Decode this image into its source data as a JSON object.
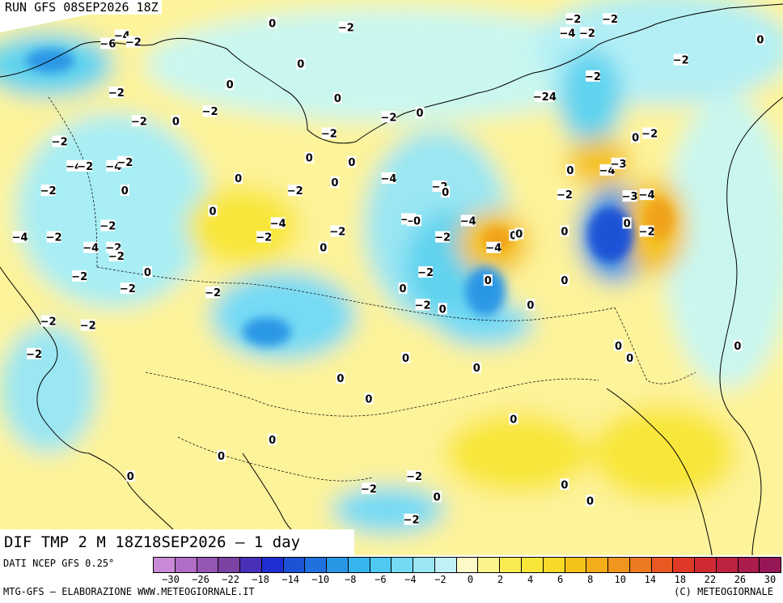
{
  "header": {
    "run_label": "RUN GFS 08SEP2026 18Z"
  },
  "title": {
    "text": "DIF TMP 2 M 18Z18SEP2026 — 1 day"
  },
  "footer": {
    "source": "DATI NCEP GFS 0.25°",
    "credit_left": "MTG-GFS — ELABORAZIONE WWW.METEOGIORNALE.IT",
    "credit_right": "(C) METEOGIORNALE"
  },
  "colors": {
    "neutral_light": "#c9f7f0",
    "cold_light": "#a8eef4",
    "cold_mid": "#5fd3ef",
    "cold_strong": "#2a97e6",
    "cold_deep": "#1b52d6",
    "warm_light": "#fdf6a0",
    "warm_mid": "#f9e63a",
    "warm_strong": "#f5c21a",
    "warm_orange": "#f0a21e"
  },
  "legend": {
    "swatches": [
      "#c88ad6",
      "#b06dc6",
      "#9557b4",
      "#7b42a3",
      "#4a2fb8",
      "#1d2fd2",
      "#1b52d6",
      "#2070e0",
      "#2a97e6",
      "#35b4ee",
      "#4fc8f2",
      "#74daf4",
      "#9ae6f3",
      "#c0f1f6",
      "#fdfac8",
      "#fdf38c",
      "#fbeb52",
      "#f9e63a",
      "#f7d928",
      "#f5c21a",
      "#f3ad18",
      "#f0951e",
      "#ec7a20",
      "#e85a22",
      "#de3826",
      "#cf2a33",
      "#bd2240",
      "#a91c4c",
      "#961756"
    ],
    "ticks": [
      "−30",
      "−26",
      "−22",
      "−18",
      "−14",
      "−10",
      "−8",
      "−6",
      "−4",
      "−2",
      "0",
      "2",
      "4",
      "6",
      "8",
      "10",
      "14",
      "18",
      "22",
      "26",
      "30"
    ]
  },
  "map_labels": [
    {
      "text": "−4",
      "lon": 35.5,
      "lat": 67.5
    },
    {
      "text": "−6",
      "lon": 33.0,
      "lat": 66.5
    },
    {
      "text": "−2",
      "lon": 37.5,
      "lat": 66.7
    },
    {
      "text": "0",
      "lon": 62.0,
      "lat": 69.0
    },
    {
      "text": "−2",
      "lon": 75.0,
      "lat": 68.5
    },
    {
      "text": "−2",
      "lon": 115.0,
      "lat": 69.5
    },
    {
      "text": "−4",
      "lon": 114.0,
      "lat": 67.8
    },
    {
      "text": "−2",
      "lon": 117.5,
      "lat": 67.8
    },
    {
      "text": "−2",
      "lon": 121.5,
      "lat": 69.5
    },
    {
      "text": "−2",
      "lon": 134.0,
      "lat": 64.5
    },
    {
      "text": "0",
      "lon": 67.0,
      "lat": 64.0
    },
    {
      "text": "0",
      "lon": 54.5,
      "lat": 61.5
    },
    {
      "text": "−2",
      "lon": 118.5,
      "lat": 62.5
    },
    {
      "text": "−24",
      "lon": 110.0,
      "lat": 60.0
    },
    {
      "text": "−2",
      "lon": 34.5,
      "lat": 60.5
    },
    {
      "text": "0",
      "lon": 73.5,
      "lat": 59.8
    },
    {
      "text": "−2",
      "lon": 38.5,
      "lat": 57.0
    },
    {
      "text": "0",
      "lon": 45.0,
      "lat": 57.0
    },
    {
      "text": "−2",
      "lon": 51.0,
      "lat": 58.2
    },
    {
      "text": "−2",
      "lon": 82.5,
      "lat": 57.5
    },
    {
      "text": "0",
      "lon": 88.0,
      "lat": 58.0
    },
    {
      "text": "−2",
      "lon": 72.0,
      "lat": 55.5
    },
    {
      "text": "−2",
      "lon": 24.5,
      "lat": 54.5
    },
    {
      "text": "0",
      "lon": 126.0,
      "lat": 55.0
    },
    {
      "text": "−2",
      "lon": 128.5,
      "lat": 55.5
    },
    {
      "text": "−4",
      "lon": 27.0,
      "lat": 51.5
    },
    {
      "text": "−2",
      "lon": 29.0,
      "lat": 51.5
    },
    {
      "text": "−4",
      "lon": 34.0,
      "lat": 51.5
    },
    {
      "text": "−2",
      "lon": 36.0,
      "lat": 52.0
    },
    {
      "text": "0",
      "lon": 68.5,
      "lat": 52.5
    },
    {
      "text": "0",
      "lon": 76.0,
      "lat": 52.0
    },
    {
      "text": "−4",
      "lon": 121.0,
      "lat": 51.0
    },
    {
      "text": "−3",
      "lon": 123.0,
      "lat": 51.8
    },
    {
      "text": "0",
      "lon": 114.5,
      "lat": 51.0
    },
    {
      "text": "0",
      "lon": 56.0,
      "lat": 50.0
    },
    {
      "text": "0",
      "lon": 36.0,
      "lat": 48.5
    },
    {
      "text": "−2",
      "lon": 22.5,
      "lat": 48.5
    },
    {
      "text": "−2",
      "lon": 66.0,
      "lat": 48.5
    },
    {
      "text": "0",
      "lon": 73.0,
      "lat": 49.5
    },
    {
      "text": "−4",
      "lon": 82.5,
      "lat": 50.0
    },
    {
      "text": "−2",
      "lon": 91.5,
      "lat": 49.0
    },
    {
      "text": "0",
      "lon": 92.5,
      "lat": 48.3
    },
    {
      "text": "−2",
      "lon": 113.5,
      "lat": 48.0
    },
    {
      "text": "−3",
      "lon": 125.0,
      "lat": 47.8
    },
    {
      "text": "−4",
      "lon": 128.0,
      "lat": 48.0
    },
    {
      "text": "0",
      "lon": 51.5,
      "lat": 46.0
    },
    {
      "text": "−2",
      "lon": 86.0,
      "lat": 45.0
    },
    {
      "text": "−",
      "lon": 86.5,
      "lat": 44.8
    },
    {
      "text": "0",
      "lon": 87.5,
      "lat": 44.8
    },
    {
      "text": "−2",
      "lon": 33.0,
      "lat": 44.2
    },
    {
      "text": "−4",
      "lon": 63.0,
      "lat": 44.5
    },
    {
      "text": "−4",
      "lon": 96.5,
      "lat": 44.8
    },
    {
      "text": "0",
      "lon": 124.5,
      "lat": 44.5
    },
    {
      "text": "−2",
      "lon": 128.0,
      "lat": 43.5
    },
    {
      "text": "0",
      "lon": 113.5,
      "lat": 43.5
    },
    {
      "text": "−4",
      "lon": 17.5,
      "lat": 42.8
    },
    {
      "text": "−2",
      "lon": 23.5,
      "lat": 42.8
    },
    {
      "text": "−2",
      "lon": 60.5,
      "lat": 42.8
    },
    {
      "text": "−2",
      "lon": 73.5,
      "lat": 43.5
    },
    {
      "text": "−2",
      "lon": 92.0,
      "lat": 42.8
    },
    {
      "text": "0",
      "lon": 104.5,
      "lat": 43.0
    },
    {
      "text": "0",
      "lon": 105.5,
      "lat": 43.2
    },
    {
      "text": "−4",
      "lon": 30.0,
      "lat": 41.5
    },
    {
      "text": "−2",
      "lon": 34.0,
      "lat": 41.5
    },
    {
      "text": "−2",
      "lon": 34.5,
      "lat": 40.5
    },
    {
      "text": "0",
      "lon": 71.0,
      "lat": 41.5
    },
    {
      "text": "−4",
      "lon": 101.0,
      "lat": 41.5
    },
    {
      "text": "0",
      "lon": 40.0,
      "lat": 38.5
    },
    {
      "text": "−2",
      "lon": 28.0,
      "lat": 38.0
    },
    {
      "text": "−2",
      "lon": 89.0,
      "lat": 38.5
    },
    {
      "text": "0",
      "lon": 100.0,
      "lat": 37.5
    },
    {
      "text": "0",
      "lon": 113.5,
      "lat": 37.5
    },
    {
      "text": "−2",
      "lon": 36.5,
      "lat": 36.5
    },
    {
      "text": "−2",
      "lon": 51.5,
      "lat": 36.0
    },
    {
      "text": "0",
      "lon": 85.0,
      "lat": 36.5
    },
    {
      "text": "−2",
      "lon": 88.5,
      "lat": 34.5
    },
    {
      "text": "0",
      "lon": 92.0,
      "lat": 34.0
    },
    {
      "text": "0",
      "lon": 107.5,
      "lat": 34.5
    },
    {
      "text": "−2",
      "lon": 22.5,
      "lat": 32.5
    },
    {
      "text": "−2",
      "lon": 29.5,
      "lat": 32.0
    },
    {
      "text": "0",
      "lon": 123.0,
      "lat": 29.5
    },
    {
      "text": "−2",
      "lon": 20.0,
      "lat": 28.5
    },
    {
      "text": "0",
      "lon": 85.5,
      "lat": 28.0
    },
    {
      "text": "0",
      "lon": 98.0,
      "lat": 26.8
    },
    {
      "text": "0",
      "lon": 125.0,
      "lat": 28.0
    },
    {
      "text": "0",
      "lon": 144.0,
      "lat": 29.5
    },
    {
      "text": "0",
      "lon": 74.0,
      "lat": 25.5
    },
    {
      "text": "0",
      "lon": 79.0,
      "lat": 23.0
    },
    {
      "text": "0",
      "lon": 62.0,
      "lat": 18.0
    },
    {
      "text": "0",
      "lon": 104.5,
      "lat": 20.5
    },
    {
      "text": "0",
      "lon": 53.0,
      "lat": 16.0
    },
    {
      "text": "−2",
      "lon": 87.0,
      "lat": 13.5
    },
    {
      "text": "−2",
      "lon": 79.0,
      "lat": 12.0
    },
    {
      "text": "0",
      "lon": 113.5,
      "lat": 12.5
    },
    {
      "text": "0",
      "lon": 91.0,
      "lat": 11.0
    },
    {
      "text": "0",
      "lon": 118.0,
      "lat": 10.5
    },
    {
      "text": "0",
      "lon": 37.0,
      "lat": 13.5
    },
    {
      "text": "0",
      "lon": 77.0,
      "lat": 7.5
    },
    {
      "text": "−2",
      "lon": 86.5,
      "lat": 8.2
    },
    {
      "text": "0",
      "lon": 101.0,
      "lat": 7.5
    },
    {
      "text": "0",
      "lon": 148.0,
      "lat": 67.0
    }
  ]
}
